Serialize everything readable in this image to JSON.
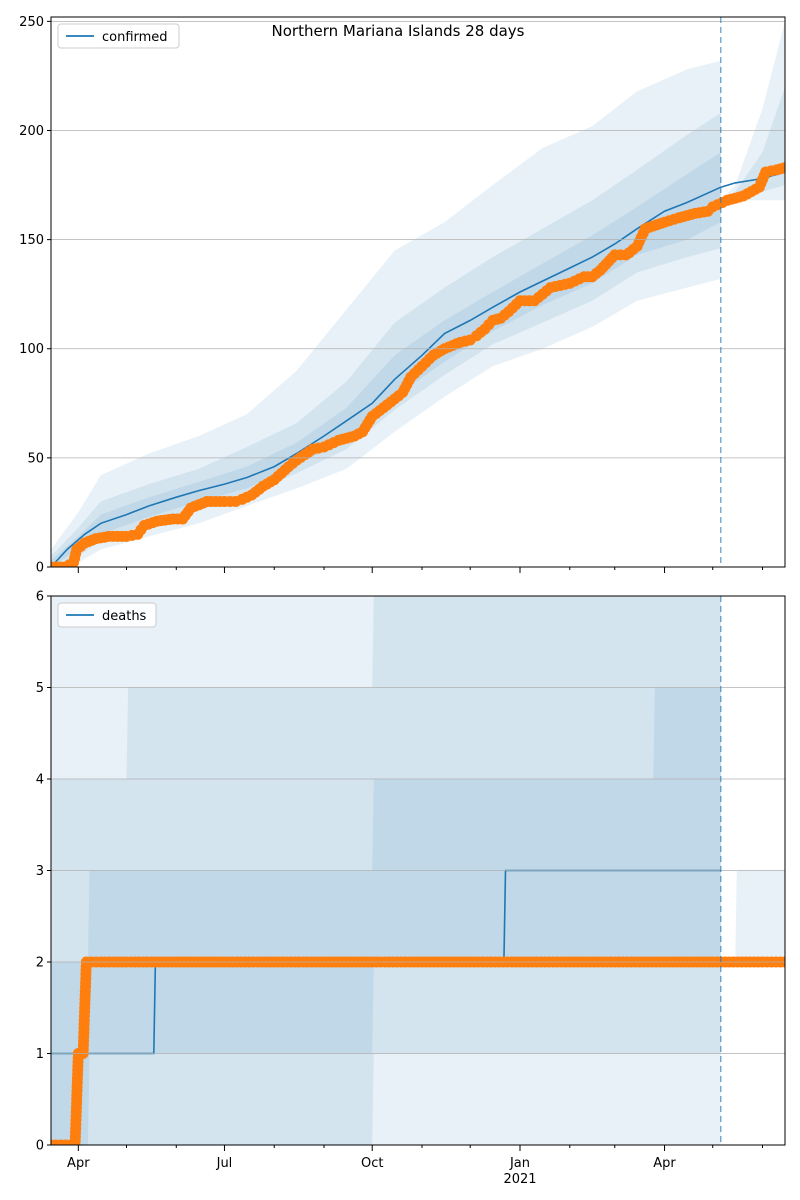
{
  "chart_data": [
    {
      "type": "line",
      "title": "Northern Mariana Islands 28 days",
      "legend": {
        "label": "confirmed",
        "placement": "top-left"
      },
      "ylim": [
        0,
        252
      ],
      "yticks": [
        0,
        50,
        100,
        150,
        200,
        250
      ],
      "grid": "horizontal",
      "x_range": [
        "2020-03-15",
        "2021-06-15"
      ],
      "forecast_start": "2021-05-06",
      "series": [
        {
          "name": "confirmed",
          "kind": "model-median",
          "color": "#1f77b4",
          "x": [
            "2020-03-15",
            "2020-03-25",
            "2020-04-05",
            "2020-04-15",
            "2020-05-01",
            "2020-05-15",
            "2020-06-01",
            "2020-06-15",
            "2020-07-01",
            "2020-07-15",
            "2020-08-01",
            "2020-08-15",
            "2020-09-01",
            "2020-09-15",
            "2020-10-01",
            "2020-10-15",
            "2020-11-01",
            "2020-11-15",
            "2020-12-01",
            "2020-12-15",
            "2021-01-01",
            "2021-01-15",
            "2021-02-01",
            "2021-02-15",
            "2021-03-01",
            "2021-03-15",
            "2021-04-01",
            "2021-04-15",
            "2021-05-06",
            "2021-05-15",
            "2021-06-01",
            "2021-06-15"
          ],
          "y": [
            0,
            8,
            15,
            20,
            24,
            28,
            32,
            35,
            38,
            41,
            46,
            52,
            60,
            67,
            75,
            86,
            97,
            107,
            113,
            119,
            126,
            131,
            137,
            142,
            148,
            155,
            163,
            167,
            174,
            176,
            178,
            181
          ]
        },
        {
          "name": "observed",
          "kind": "points",
          "color": "#ff7f0e",
          "x": [
            "2020-03-15",
            "2020-03-24",
            "2020-03-29",
            "2020-03-31",
            "2020-04-05",
            "2020-04-12",
            "2020-04-20",
            "2020-05-01",
            "2020-05-08",
            "2020-05-12",
            "2020-05-20",
            "2020-05-30",
            "2020-06-05",
            "2020-06-10",
            "2020-06-20",
            "2020-07-01",
            "2020-07-08",
            "2020-07-12",
            "2020-07-18",
            "2020-07-25",
            "2020-08-01",
            "2020-08-10",
            "2020-08-15",
            "2020-08-25",
            "2020-09-01",
            "2020-09-10",
            "2020-09-20",
            "2020-09-25",
            "2020-10-01",
            "2020-10-08",
            "2020-10-15",
            "2020-10-20",
            "2020-10-25",
            "2020-11-01",
            "2020-11-08",
            "2020-11-15",
            "2020-11-25",
            "2020-12-01",
            "2020-12-05",
            "2020-12-10",
            "2020-12-15",
            "2020-12-20",
            "2020-12-25",
            "2021-01-01",
            "2021-01-10",
            "2021-01-15",
            "2021-01-20",
            "2021-02-01",
            "2021-02-10",
            "2021-02-15",
            "2021-02-20",
            "2021-03-01",
            "2021-03-08",
            "2021-03-10",
            "2021-03-15",
            "2021-03-20",
            "2021-04-01",
            "2021-04-10",
            "2021-04-20",
            "2021-04-28",
            "2021-05-01",
            "2021-05-10",
            "2021-05-20",
            "2021-05-30",
            "2021-06-03",
            "2021-06-10",
            "2021-06-15"
          ],
          "y": [
            0,
            0,
            2,
            8,
            11,
            13,
            14,
            14,
            15,
            19,
            21,
            22,
            22,
            27,
            30,
            30,
            30,
            31,
            33,
            37,
            40,
            46,
            49,
            54,
            55,
            58,
            60,
            62,
            69,
            73,
            77,
            80,
            87,
            92,
            97,
            100,
            103,
            104,
            106,
            109,
            113,
            114,
            117,
            122,
            122,
            125,
            128,
            130,
            133,
            133,
            136,
            143,
            143,
            144,
            147,
            155,
            158,
            160,
            162,
            163,
            165,
            168,
            170,
            174,
            181,
            182,
            183
          ]
        }
      ],
      "bands": [
        {
          "name": "outer",
          "color": "#1f77b4",
          "opacity": 0.1,
          "x": [
            "2020-03-15",
            "2020-04-01",
            "2020-04-15",
            "2020-05-15",
            "2020-06-15",
            "2020-07-15",
            "2020-08-15",
            "2020-09-15",
            "2020-10-15",
            "2020-11-15",
            "2020-12-15",
            "2021-01-15",
            "2021-02-15",
            "2021-03-15",
            "2021-04-15",
            "2021-05-06"
          ],
          "low": [
            0,
            2,
            8,
            14,
            20,
            28,
            36,
            45,
            62,
            78,
            92,
            100,
            110,
            122,
            128,
            132
          ],
          "high": [
            8,
            25,
            42,
            52,
            60,
            70,
            90,
            118,
            145,
            158,
            175,
            192,
            202,
            218,
            228,
            232
          ]
        },
        {
          "name": "middle",
          "color": "#1f77b4",
          "opacity": 0.1,
          "x": [
            "2020-03-15",
            "2020-04-01",
            "2020-04-15",
            "2020-05-15",
            "2020-06-15",
            "2020-07-15",
            "2020-08-15",
            "2020-09-15",
            "2020-10-15",
            "2020-11-15",
            "2020-12-15",
            "2021-01-15",
            "2021-02-15",
            "2021-03-15",
            "2021-04-15",
            "2021-05-06"
          ],
          "low": [
            0,
            5,
            12,
            20,
            26,
            33,
            43,
            54,
            72,
            88,
            102,
            112,
            122,
            135,
            142,
            146
          ],
          "high": [
            5,
            18,
            30,
            38,
            45,
            55,
            66,
            85,
            112,
            128,
            142,
            155,
            168,
            182,
            198,
            208
          ]
        },
        {
          "name": "inner",
          "color": "#1f77b4",
          "opacity": 0.1,
          "x": [
            "2020-03-15",
            "2020-04-01",
            "2020-04-15",
            "2020-05-15",
            "2020-06-15",
            "2020-07-15",
            "2020-08-15",
            "2020-09-15",
            "2020-10-15",
            "2020-11-15",
            "2020-12-15",
            "2021-01-15",
            "2021-02-15",
            "2021-03-15",
            "2021-04-15",
            "2021-05-06"
          ],
          "low": [
            0,
            8,
            15,
            23,
            30,
            36,
            47,
            58,
            78,
            94,
            108,
            120,
            130,
            143,
            150,
            158
          ],
          "high": [
            3,
            14,
            24,
            32,
            39,
            46,
            57,
            73,
            97,
            113,
            126,
            139,
            152,
            165,
            180,
            190
          ]
        },
        {
          "name": "forecast-outer",
          "color": "#1f77b4",
          "opacity": 0.1,
          "x": [
            "2021-05-06",
            "2021-05-15",
            "2021-06-01",
            "2021-06-15"
          ],
          "low": [
            168,
            168,
            168,
            168
          ],
          "high": [
            168,
            175,
            210,
            250
          ]
        },
        {
          "name": "forecast-inner",
          "color": "#1f77b4",
          "opacity": 0.1,
          "x": [
            "2021-05-06",
            "2021-05-15",
            "2021-06-01",
            "2021-06-15"
          ],
          "low": [
            168,
            169,
            172,
            175
          ],
          "high": [
            168,
            172,
            190,
            220
          ]
        }
      ],
      "xticks": [
        {
          "date": "2020-04-01",
          "label": "Apr"
        },
        {
          "date": "2020-07-01",
          "label": "Jul"
        },
        {
          "date": "2020-10-01",
          "label": "Oct"
        },
        {
          "date": "2021-01-01",
          "label": "Jan"
        },
        {
          "date": "2021-04-01",
          "label": "Apr"
        }
      ],
      "minor_xticks": [
        "2020-05-01",
        "2020-06-01",
        "2020-08-01",
        "2020-09-01",
        "2020-11-01",
        "2020-12-01",
        "2021-02-01",
        "2021-03-01",
        "2021-05-01",
        "2021-06-01"
      ]
    },
    {
      "type": "line",
      "legend": {
        "label": "deaths",
        "placement": "top-left"
      },
      "ylim": [
        0,
        6
      ],
      "yticks": [
        0,
        1,
        2,
        3,
        4,
        5,
        6
      ],
      "grid": "horizontal",
      "x_range": [
        "2020-03-15",
        "2021-06-15"
      ],
      "forecast_start": "2021-05-06",
      "xticks": [
        {
          "date": "2020-04-01",
          "label": "Apr"
        },
        {
          "date": "2020-07-01",
          "label": "Jul"
        },
        {
          "date": "2020-10-01",
          "label": "Oct"
        },
        {
          "date": "2021-01-01",
          "label": "Jan",
          "sublabel": "2021"
        },
        {
          "date": "2021-04-01",
          "label": "Apr"
        }
      ],
      "minor_xticks": [
        "2020-05-01",
        "2020-06-01",
        "2020-08-01",
        "2020-09-01",
        "2020-11-01",
        "2020-12-01",
        "2021-02-01",
        "2021-03-01",
        "2021-05-01",
        "2021-06-01"
      ],
      "series": [
        {
          "name": "deaths",
          "kind": "model-median-step",
          "color": "#1f77b4",
          "x": [
            "2020-03-15",
            "2020-05-18",
            "2020-05-19",
            "2020-12-22",
            "2020-12-23",
            "2021-05-06"
          ],
          "y": [
            1,
            1,
            2,
            2,
            3,
            3
          ]
        },
        {
          "name": "observed",
          "kind": "points",
          "color": "#ff7f0e",
          "x": [
            "2020-03-15",
            "2020-03-18",
            "2020-03-21",
            "2020-03-24",
            "2020-03-27",
            "2020-03-30",
            "2020-04-01",
            "2020-04-04",
            "2020-04-06",
            "2020-04-09",
            "2020-04-15",
            "2020-05-01",
            "2020-06-01",
            "2020-07-01",
            "2020-08-01",
            "2020-09-01",
            "2020-10-01",
            "2020-11-01",
            "2020-12-01",
            "2021-01-01",
            "2021-02-01",
            "2021-03-01",
            "2021-04-01",
            "2021-05-01",
            "2021-06-01",
            "2021-06-15"
          ],
          "y": [
            0,
            0,
            0,
            0,
            0,
            0,
            1,
            1,
            2,
            2,
            2,
            2,
            2,
            2,
            2,
            2,
            2,
            2,
            2,
            2,
            2,
            2,
            2,
            2,
            2,
            2
          ]
        }
      ],
      "bands": [
        {
          "name": "outer",
          "color": "#1f77b4",
          "opacity": 0.1,
          "step": true,
          "x": [
            "2020-03-15",
            "2021-05-06"
          ],
          "low": [
            0,
            0
          ],
          "high": [
            6,
            6
          ]
        },
        {
          "name": "middle",
          "color": "#1f77b4",
          "opacity": 0.1,
          "step": true,
          "x": [
            "2020-03-15",
            "2020-05-01",
            "2020-05-02",
            "2020-10-01",
            "2020-10-02",
            "2021-01-10",
            "2021-01-11",
            "2021-05-06"
          ],
          "low": [
            0,
            0,
            0,
            0,
            1,
            1,
            1,
            1
          ],
          "high": [
            4,
            4,
            5,
            5,
            6,
            6,
            6,
            6
          ]
        },
        {
          "name": "inner",
          "color": "#1f77b4",
          "opacity": 0.1,
          "step": true,
          "x": [
            "2020-03-15",
            "2020-04-07",
            "2020-04-08",
            "2020-05-01",
            "2020-05-02",
            "2020-10-01",
            "2020-10-02",
            "2021-03-25",
            "2021-03-26",
            "2021-05-06"
          ],
          "low": [
            0,
            0,
            1,
            1,
            1,
            1,
            2,
            2,
            2,
            2
          ],
          "high": [
            2,
            2,
            3,
            3,
            3,
            3,
            4,
            4,
            5,
            5
          ]
        },
        {
          "name": "forecast-outer",
          "color": "#1f77b4",
          "opacity": 0.1,
          "step": true,
          "x": [
            "2021-05-06",
            "2021-05-15",
            "2021-05-16",
            "2021-06-15"
          ],
          "low": [
            2,
            2,
            2,
            2
          ],
          "high": [
            2,
            2,
            3,
            3
          ]
        }
      ]
    }
  ]
}
